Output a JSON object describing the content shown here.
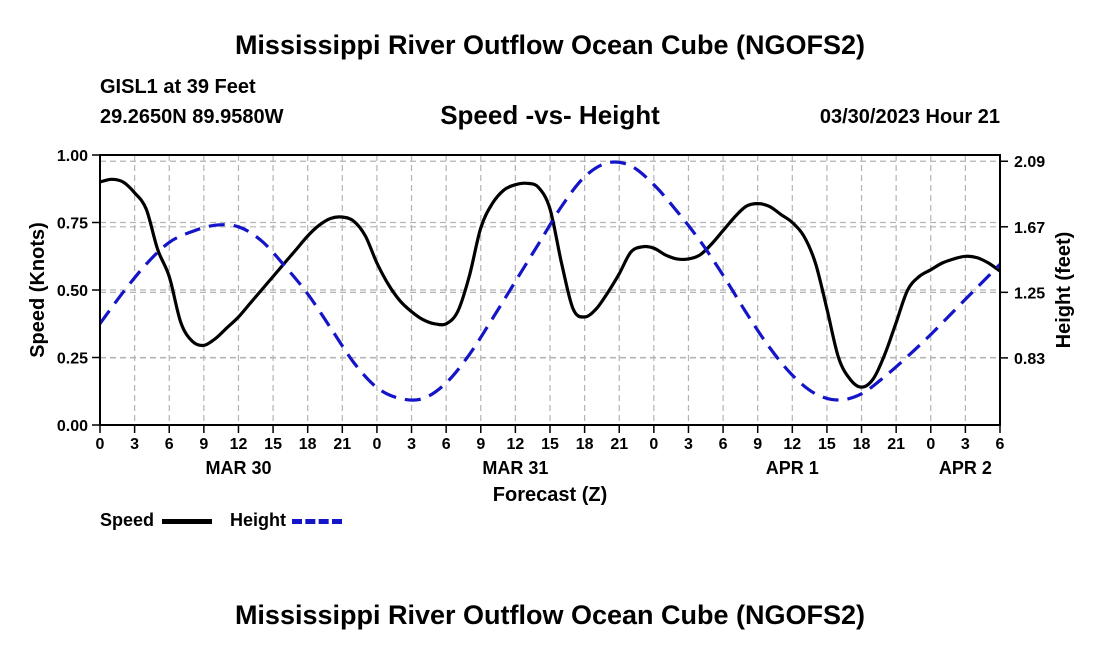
{
  "header": {
    "title": "Mississippi River Outflow Ocean Cube (NGOFS2)",
    "station": "GISL1 at 39 Feet",
    "coords": "29.2650N  89.9580W",
    "subtitle": "Speed -vs- Height",
    "timestamp": "03/30/2023 Hour 21"
  },
  "footer": {
    "title": "Mississippi River Outflow Ocean Cube (NGOFS2)"
  },
  "legend": {
    "speed_label": "Speed",
    "height_label": "Height"
  },
  "colors": {
    "speed": "#000000",
    "height": "#1414c8",
    "grid": "#b4b4b4"
  },
  "chart_data": {
    "type": "line",
    "xlabel": "Forecast (Z)",
    "ylabel_left": "Speed (Knots)",
    "ylabel_right": "Height (feet)",
    "x_unit": "hours from 00Z MAR 30",
    "xlim": [
      0,
      78
    ],
    "ylim_left": [
      0,
      1.0
    ],
    "ylim_right": [
      0.4,
      2.13
    ],
    "x_ticks": [
      0,
      3,
      6,
      9,
      12,
      15,
      18,
      21,
      24,
      27,
      30,
      33,
      36,
      39,
      42,
      45,
      48,
      51,
      54,
      57,
      60,
      63,
      66,
      69,
      72,
      75,
      78
    ],
    "x_tick_labels": [
      "0",
      "3",
      "6",
      "9",
      "12",
      "15",
      "18",
      "21",
      "0",
      "3",
      "6",
      "9",
      "12",
      "15",
      "18",
      "21",
      "0",
      "3",
      "6",
      "9",
      "12",
      "15",
      "18",
      "21",
      "0",
      "3",
      "6"
    ],
    "day_labels": [
      {
        "x": 12,
        "label": "MAR 30"
      },
      {
        "x": 36,
        "label": "MAR 31"
      },
      {
        "x": 60,
        "label": "APR 1"
      },
      {
        "x": 75,
        "label": "APR 2"
      }
    ],
    "left_ticks": [
      0.0,
      0.25,
      0.5,
      0.75,
      1.0
    ],
    "left_tick_labels": [
      "0.00",
      "0.25",
      "0.50",
      "0.75",
      "1.00"
    ],
    "right_ticks": [
      0.83,
      1.25,
      1.67,
      2.09
    ],
    "right_tick_labels": [
      "0.83",
      "1.25",
      "1.67",
      "2.09"
    ],
    "series": [
      {
        "name": "Speed",
        "axis": "left",
        "style": "solid",
        "x": [
          0,
          1,
          2,
          3,
          4,
          5,
          6,
          7,
          8,
          9,
          10,
          11,
          12,
          13,
          14,
          15,
          16,
          17,
          18,
          19,
          20,
          21,
          22,
          23,
          24,
          25,
          26,
          27,
          28,
          29,
          30,
          31,
          32,
          33,
          34,
          35,
          36,
          37,
          38,
          39,
          40,
          41,
          42,
          43,
          44,
          45,
          46,
          47,
          48,
          49,
          50,
          51,
          52,
          53,
          54,
          55,
          56,
          57,
          58,
          59,
          60,
          61,
          62,
          63,
          64,
          65,
          66,
          67,
          68,
          69,
          70,
          71,
          72,
          73,
          74,
          75,
          76,
          77,
          78
        ],
        "values": [
          0.9,
          0.91,
          0.9,
          0.86,
          0.8,
          0.65,
          0.55,
          0.38,
          0.31,
          0.295,
          0.32,
          0.36,
          0.4,
          0.45,
          0.5,
          0.55,
          0.6,
          0.65,
          0.7,
          0.74,
          0.765,
          0.77,
          0.755,
          0.7,
          0.6,
          0.52,
          0.46,
          0.42,
          0.39,
          0.375,
          0.375,
          0.42,
          0.55,
          0.73,
          0.82,
          0.87,
          0.89,
          0.895,
          0.88,
          0.8,
          0.6,
          0.43,
          0.4,
          0.43,
          0.49,
          0.56,
          0.64,
          0.66,
          0.655,
          0.63,
          0.615,
          0.615,
          0.63,
          0.67,
          0.72,
          0.77,
          0.81,
          0.82,
          0.81,
          0.78,
          0.75,
          0.7,
          0.6,
          0.43,
          0.25,
          0.17,
          0.14,
          0.17,
          0.26,
          0.38,
          0.5,
          0.55,
          0.575,
          0.6,
          0.615,
          0.625,
          0.62,
          0.6,
          0.57
        ]
      },
      {
        "name": "Height",
        "axis": "right",
        "style": "dashed",
        "x": [
          0,
          2,
          4,
          6,
          8,
          10,
          12,
          14,
          16,
          18,
          20,
          22,
          24,
          26,
          28,
          30,
          32,
          34,
          36,
          38,
          40,
          42,
          44,
          46,
          48,
          50,
          52,
          54,
          56,
          58,
          60,
          62,
          64,
          66,
          68,
          70,
          72,
          74,
          76,
          78
        ],
        "values": [
          1.05,
          1.25,
          1.43,
          1.57,
          1.64,
          1.68,
          1.67,
          1.58,
          1.42,
          1.24,
          1.02,
          0.8,
          0.64,
          0.57,
          0.57,
          0.67,
          0.85,
          1.08,
          1.32,
          1.56,
          1.8,
          1.99,
          2.08,
          2.06,
          1.94,
          1.77,
          1.58,
          1.36,
          1.12,
          0.9,
          0.72,
          0.6,
          0.56,
          0.6,
          0.71,
          0.84,
          0.98,
          1.13,
          1.28,
          1.43
        ]
      }
    ]
  }
}
